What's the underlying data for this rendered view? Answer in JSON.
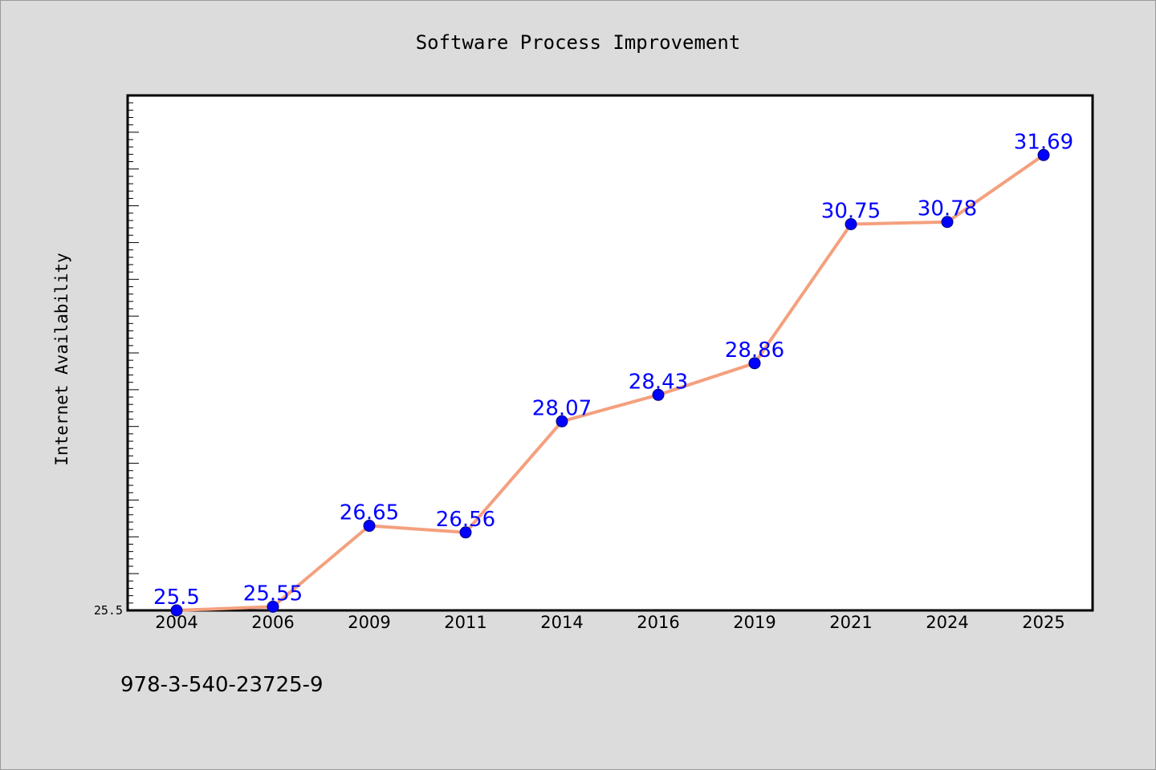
{
  "chart_data": {
    "type": "line",
    "title": "Software Process Improvement",
    "xlabel": "",
    "ylabel": "Internet Availability",
    "categories": [
      "2004",
      "2006",
      "2009",
      "2011",
      "2014",
      "2016",
      "2019",
      "2021",
      "2024",
      "2025"
    ],
    "series": [
      {
        "values": [
          25.5,
          25.55,
          26.65,
          26.56,
          28.07,
          28.43,
          28.86,
          30.75,
          30.78,
          31.69
        ],
        "line_color": "#f4a07e",
        "marker_color": "#0000ff",
        "label_color": "#0000ff"
      }
    ],
    "data_labels": [
      "25.5",
      "25.55",
      "26.65",
      "26.56",
      "28.07",
      "28.43",
      "28.86",
      "30.75",
      "30.78",
      "31.69"
    ],
    "ylim": [
      25.5,
      32.5
    ],
    "y_tick_labels": [
      "25.5"
    ],
    "grid": false,
    "legend": "none"
  },
  "footer": {
    "isbn": "978-3-540-23725-9"
  },
  "colors": {
    "background": "#dcdcdc",
    "plot_background": "#ffffff",
    "axis": "#000000"
  }
}
